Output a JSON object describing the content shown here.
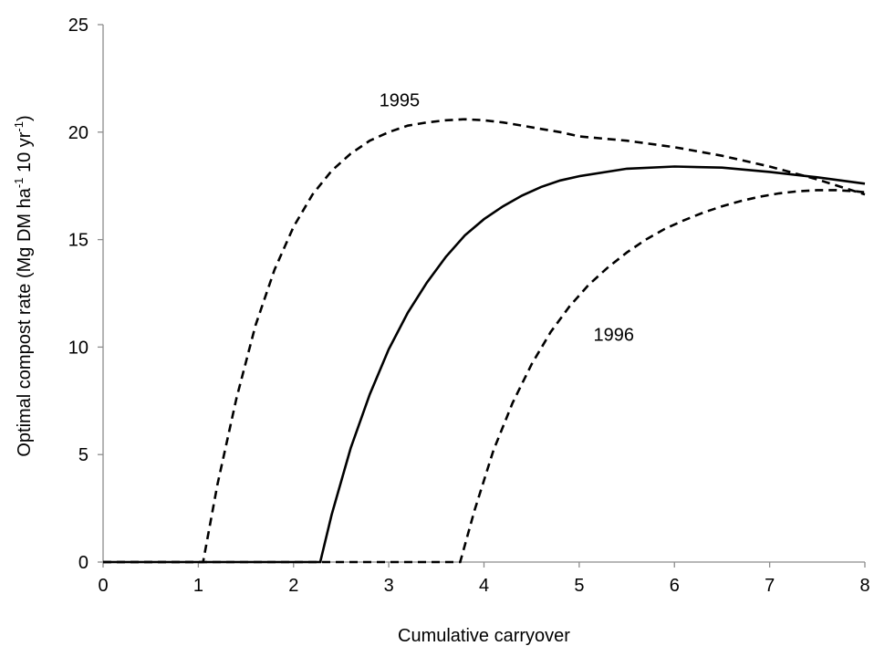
{
  "chart_data": {
    "type": "line",
    "title": "",
    "xlabel": "Cumulative carryover",
    "ylabel": {
      "main": "Optimal compost rate (Mg DM ha",
      "sup1": "-1",
      "mid": " 10 yr",
      "sup2": "-1",
      "end": ")"
    },
    "xlim": [
      0,
      8
    ],
    "ylim": [
      0,
      25
    ],
    "xticks": [
      "0",
      "1",
      "2",
      "3",
      "4",
      "5",
      "6",
      "7",
      "8"
    ],
    "yticks": [
      "0",
      "5",
      "10",
      "15",
      "20",
      "25"
    ],
    "grid": false,
    "series": [
      {
        "name": "1995",
        "style": "dashed",
        "x": [
          0,
          1.05,
          1.2,
          1.4,
          1.6,
          1.8,
          2.0,
          2.2,
          2.4,
          2.6,
          2.8,
          3.0,
          3.2,
          3.4,
          3.6,
          3.8,
          4.0,
          4.2,
          4.4,
          4.6,
          4.8,
          5.0,
          5.5,
          6.0,
          6.5,
          7.0,
          7.5,
          8.0
        ],
        "y": [
          0,
          0,
          3.6,
          7.6,
          11.0,
          13.6,
          15.6,
          17.1,
          18.2,
          19.0,
          19.6,
          20.0,
          20.3,
          20.45,
          20.55,
          20.6,
          20.55,
          20.45,
          20.3,
          20.15,
          20.0,
          19.8,
          19.6,
          19.3,
          18.9,
          18.4,
          17.8,
          17.1
        ]
      },
      {
        "name": "",
        "style": "solid",
        "x": [
          0,
          2.28,
          2.4,
          2.6,
          2.8,
          3.0,
          3.2,
          3.4,
          3.6,
          3.8,
          4.0,
          4.2,
          4.4,
          4.6,
          4.8,
          5.0,
          5.5,
          6.0,
          6.5,
          7.0,
          7.5,
          8.0
        ],
        "y": [
          0,
          0,
          2.2,
          5.3,
          7.8,
          9.9,
          11.6,
          13.0,
          14.2,
          15.2,
          15.95,
          16.55,
          17.05,
          17.45,
          17.75,
          17.95,
          18.3,
          18.4,
          18.35,
          18.15,
          17.9,
          17.6
        ]
      },
      {
        "name": "1996",
        "style": "dashed",
        "x": [
          0,
          3.75,
          3.9,
          4.1,
          4.3,
          4.5,
          4.7,
          4.9,
          5.1,
          5.3,
          5.5,
          5.7,
          5.9,
          6.1,
          6.3,
          6.5,
          6.7,
          6.9,
          7.1,
          7.3,
          7.5,
          7.7,
          7.9,
          8.0
        ],
        "y": [
          0,
          0,
          2.4,
          5.2,
          7.4,
          9.2,
          10.7,
          11.9,
          12.9,
          13.7,
          14.4,
          15.0,
          15.5,
          15.9,
          16.25,
          16.55,
          16.8,
          17.0,
          17.15,
          17.25,
          17.3,
          17.3,
          17.25,
          17.2
        ]
      }
    ],
    "annotations": [
      {
        "text": "1995",
        "x": 2.9,
        "y": 21.2
      },
      {
        "text": "1996",
        "x": 5.15,
        "y": 10.3
      }
    ]
  }
}
